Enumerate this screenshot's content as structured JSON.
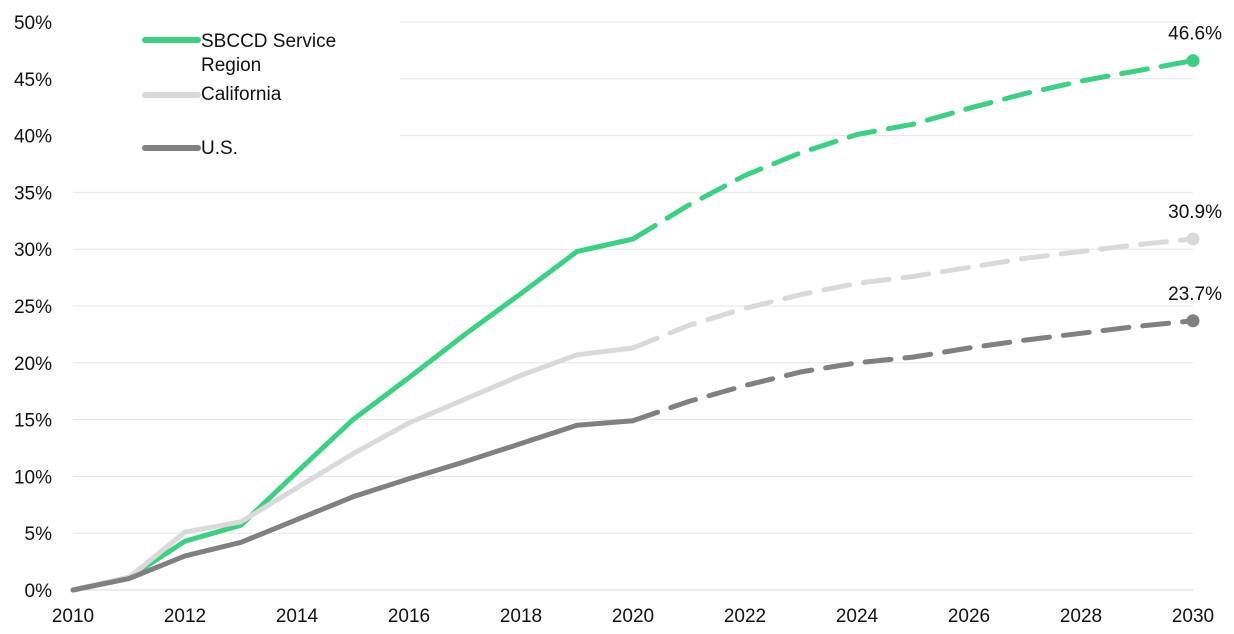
{
  "chart_data": {
    "type": "line",
    "title": "",
    "xlabel": "",
    "ylabel": "",
    "x_ticks": [
      "2010",
      "2012",
      "2014",
      "2016",
      "2018",
      "2020",
      "2022",
      "2024",
      "2026",
      "2028",
      "2030"
    ],
    "y_ticks": [
      "0%",
      "5%",
      "10%",
      "15%",
      "20%",
      "25%",
      "30%",
      "35%",
      "40%",
      "45%",
      "50%"
    ],
    "xlim": [
      2010,
      2030
    ],
    "ylim": [
      0,
      50
    ],
    "grid": "horizontal",
    "legend_position": "top-left",
    "actual_through": 2020,
    "series": [
      {
        "name": "SBCCD Service Region",
        "color": "#3ecf82",
        "x": [
          2010,
          2011,
          2012,
          2013,
          2014,
          2015,
          2016,
          2017,
          2018,
          2019,
          2020,
          2021,
          2022,
          2023,
          2024,
          2025,
          2026,
          2027,
          2028,
          2029,
          2030
        ],
        "y": [
          0,
          1.1,
          4.3,
          5.7,
          10.4,
          15.0,
          18.7,
          22.5,
          26.1,
          29.8,
          30.9,
          33.9,
          36.5,
          38.5,
          40.1,
          41.0,
          42.4,
          43.7,
          44.8,
          45.7,
          46.6
        ],
        "end_label": "46.6%"
      },
      {
        "name": "California",
        "color": "#d9d9d9",
        "x": [
          2010,
          2011,
          2012,
          2013,
          2014,
          2015,
          2016,
          2017,
          2018,
          2019,
          2020,
          2021,
          2022,
          2023,
          2024,
          2025,
          2026,
          2027,
          2028,
          2029,
          2030
        ],
        "y": [
          0,
          1.1,
          5.1,
          6.0,
          9.0,
          12.0,
          14.7,
          16.8,
          18.9,
          20.7,
          21.3,
          23.3,
          24.8,
          26.0,
          27.0,
          27.6,
          28.4,
          29.2,
          29.8,
          30.4,
          30.9
        ],
        "end_label": "30.9%"
      },
      {
        "name": "U.S.",
        "color": "#808080",
        "x": [
          2010,
          2011,
          2012,
          2013,
          2014,
          2015,
          2016,
          2017,
          2018,
          2019,
          2020,
          2021,
          2022,
          2023,
          2024,
          2025,
          2026,
          2027,
          2028,
          2029,
          2030
        ],
        "y": [
          0,
          1.0,
          3.0,
          4.2,
          6.2,
          8.2,
          9.8,
          11.3,
          12.9,
          14.5,
          14.9,
          16.6,
          18.0,
          19.2,
          20.0,
          20.5,
          21.3,
          22.0,
          22.6,
          23.2,
          23.7
        ],
        "end_label": "23.7%"
      }
    ],
    "legend": [
      {
        "label_lines": [
          "SBCCD Service",
          "Region"
        ],
        "color": "#3ecf82"
      },
      {
        "label_lines": [
          "California"
        ],
        "color": "#d9d9d9"
      },
      {
        "label_lines": [
          "U.S."
        ],
        "color": "#808080"
      }
    ]
  }
}
